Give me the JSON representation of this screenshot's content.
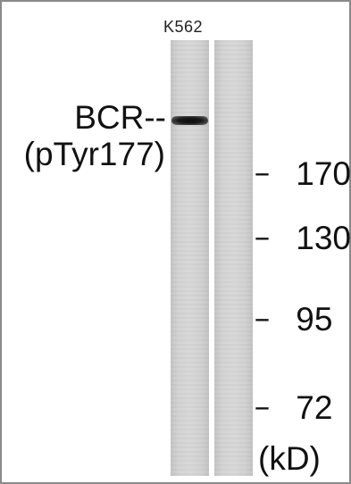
{
  "sample": {
    "label": "K562"
  },
  "protein": {
    "name": "BCR--",
    "site": "(pTyr177)"
  },
  "markers": [
    {
      "dash": "--",
      "value": "170"
    },
    {
      "dash": "--",
      "value": "130"
    },
    {
      "dash": "--",
      "value": "95"
    },
    {
      "dash": "--",
      "value": "72"
    }
  ],
  "unit": "(kD)"
}
